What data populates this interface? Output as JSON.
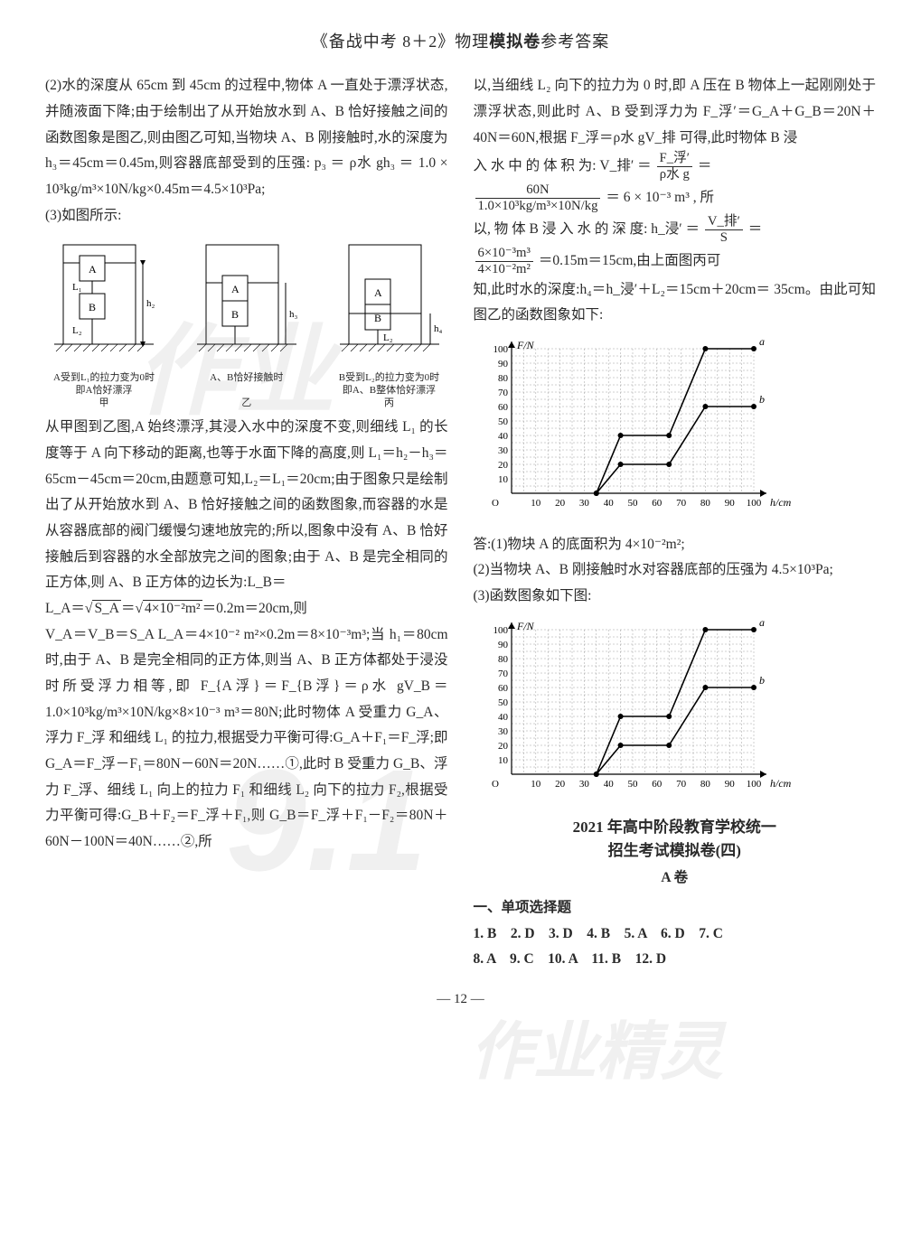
{
  "header": {
    "full": "《备战中考 8＋2》物理模拟卷参考答案",
    "prefix": "《备战中考 8＋2》物理",
    "bold": "模拟卷",
    "suffix": "参考答案"
  },
  "left": {
    "p1": "(2)水的深度从 65cm 到 45cm 的过程中,物体 A 一直处于漂浮状态,并随液面下降;由于绘制出了从开始放水到 A、B 恰好接触之间的函数图象是图乙,则由图乙可知,当物块 A、B 刚接触时,水的深度为 h₃＝45cm＝0.45m,则容器底部受到的压强: p₃ ＝ ρ水 gh₃ ＝ 1.0 × 10³kg/m³×10N/kg×0.45m＝4.5×10³Pa;",
    "p2": "(3)如图所示:",
    "diag": {
      "cap1a": "A受到L₁的拉力变为0时",
      "cap1b": "即A恰好漂浮",
      "cap1c": "甲",
      "cap2a": "A、B恰好接触时",
      "cap2b": "乙",
      "cap3a": "B受到L₂的拉力变为0时",
      "cap3b": "即A、B整体恰好漂浮",
      "cap3c": "丙",
      "labels": {
        "A": "A",
        "B": "B",
        "L1": "L₁",
        "L2": "L₂",
        "h2": "h₂",
        "h3": "h₃",
        "h4": "h₄"
      }
    },
    "p3": "从甲图到乙图,A 始终漂浮,其浸入水中的深度不变,则细线 L₁ 的长度等于 A 向下移动的距离,也等于水面下降的高度,则 L₁＝h₂－h₃＝65cm－45cm＝20cm,由题意可知,L₂＝L₁＝20cm;由于图象只是绘制出了从开始放水到 A、B 恰好接触之间的函数图象,而容器的水是从容器底部的阀门缓慢匀速地放完的;所以,图象中没有 A、B 恰好接触后到容器的水全部放完之间的图象;由于 A、B 是完全相同的正方体,则 A、B 正方体的边长为:L_B＝",
    "p4_pre": "L_A＝",
    "p4_sqrt_inner": "S_A",
    "p4_eq": "＝",
    "p4_sqrt_inner2": "4×10⁻²m²",
    "p4_post": "＝0.2m＝20cm,则",
    "p5": "V_A＝V_B＝S_A L_A＝4×10⁻² m²×0.2m＝8×10⁻³m³;当 h₁＝80cm 时,由于 A、B 是完全相同的正方体,则当 A、B 正方体都处于浸没时所受浮力相等,即 F_{A浮}＝F_{B浮}＝ρ水 gV_B＝1.0×10³kg/m³×10N/kg×8×10⁻³ m³＝80N;此时物体 A 受重力 G_A、浮力 F_浮 和细线 L₁ 的拉力,根据受力平衡可得:G_A＋F₁＝F_浮;即 G_A＝F_浮－F₁＝80N－60N＝20N……①,此时 B 受重力 G_B、浮力 F_浮、细线 L₁ 向上的拉力 F₁ 和细线 L₂ 向下的拉力 F₂,根据受力平衡可得:G_B＋F₂＝F_浮＋F₁,则 G_B＝F_浮＋F₁－F₂＝80N＋60N－100N＝40N……②,所"
  },
  "right": {
    "p1": "以,当细线 L₂ 向下的拉力为 0 时,即 A 压在 B 物体上一起刚刚处于漂浮状态,则此时 A、B 受到浮力为 F_浮′＝G_A＋G_B＝20N＋40N＝60N,根据 F_浮＝ρ水 gV_排 可得,此时物体 B 浸",
    "p2a": "入 水 中 的 体 积 为: V_排′ ＝ ",
    "frac1_num": "F_浮′",
    "frac1_den": "ρ水 g",
    "p2b": " ＝",
    "frac2_num": "60N",
    "frac2_den": "1.0×10³kg/m³×10N/kg",
    "p2c": " ＝ 6 × 10⁻³ m³ , 所",
    "p3a": "以, 物 体 B 浸 入 水 的 深 度: h_浸′ ＝ ",
    "frac3_num": "V_排′",
    "frac3_den": "S",
    "p3b": " ＝",
    "frac4_num": "6×10⁻³m³",
    "frac4_den": "4×10⁻²m²",
    "p4": "＝0.15m＝15cm,由上面图丙可",
    "p5": "知,此时水的深度:h₄＝h_浸′＋L₂＝15cm＋20cm＝ 35cm。由此可知图乙的函数图象如下:",
    "ans1": "答:(1)物块 A 的底面积为 4×10⁻²m²;",
    "ans2": "(2)当物块 A、B 刚接触时水对容器底部的压强为 4.5×10³Pa;",
    "ans3": "(3)函数图象如下图:",
    "section_title1": "2021 年高中阶段教育学校统一",
    "section_title2": "招生考试模拟卷(四)",
    "a_label": "A 卷",
    "mcq_head": "一、单项选择题",
    "mcq_line1": "1. B　2. D　3. D　4. B　5. A　6. D　7. C",
    "mcq_line2": "8. A　9. C　10. A　11. B　12. D"
  },
  "chart": {
    "ylabel": "F/N",
    "xlabel": "h/cm",
    "yticks": [
      0,
      10,
      20,
      30,
      40,
      50,
      60,
      70,
      80,
      90,
      100
    ],
    "xticks": [
      10,
      20,
      30,
      40,
      50,
      60,
      70,
      80,
      90,
      100
    ],
    "ylim": [
      0,
      100
    ],
    "xlim": [
      0,
      100
    ],
    "grid_color": "#888888",
    "axis_color": "#000000",
    "bg": "#ffffff",
    "series_a": {
      "label": "a",
      "points": [
        [
          35,
          0
        ],
        [
          45,
          40
        ],
        [
          65,
          40
        ],
        [
          80,
          100
        ],
        [
          100,
          100
        ]
      ],
      "color": "#000000"
    },
    "series_b": {
      "label": "b",
      "points": [
        [
          35,
          0
        ],
        [
          45,
          20
        ],
        [
          65,
          20
        ],
        [
          80,
          60
        ],
        [
          100,
          60
        ]
      ],
      "color": "#000000"
    },
    "marker_size": 3,
    "line_width": 1.6
  },
  "pagenum": "— 12 —"
}
